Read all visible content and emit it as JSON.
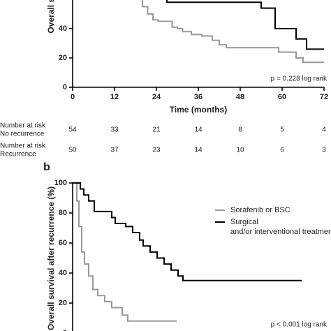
{
  "chart_data": [
    {
      "type": "line",
      "step": true,
      "x_label": "Time (months)",
      "y_label": "Overall survival (%)",
      "xlim": [
        0,
        72
      ],
      "xticks": [
        0,
        12,
        24,
        36,
        48,
        60,
        72
      ],
      "ylim": [
        0,
        100
      ],
      "yticks": [
        0,
        20,
        40
      ],
      "annotation": "p = 0.228 log rank",
      "series": [
        {
          "name": "No recurrence",
          "color": "#000000",
          "x": [
            0,
            8,
            14,
            20,
            25,
            27,
            54,
            58,
            64,
            67,
            72
          ],
          "values": [
            100,
            94,
            86,
            76,
            66,
            58,
            54,
            40,
            33,
            26,
            26
          ]
        },
        {
          "name": "Recurrence",
          "color": "#999999",
          "x": [
            0,
            4,
            8,
            12,
            16,
            19,
            20,
            21.5,
            23,
            24.5,
            28.5,
            30,
            31.5,
            34,
            37,
            40,
            42,
            44,
            59,
            64,
            66,
            72
          ],
          "values": [
            100,
            94,
            86,
            78,
            68,
            60,
            55,
            50,
            46,
            45,
            41,
            40,
            38,
            36,
            35,
            32,
            29,
            27,
            24,
            20,
            17,
            17
          ]
        }
      ],
      "risk_table": {
        "header": "Number at risk",
        "rows": [
          {
            "name": "No recurrence",
            "values": [
              54,
              33,
              21,
              14,
              8,
              5,
              4
            ]
          },
          {
            "name": "Recurrence",
            "values": [
              50,
              37,
              23,
              14,
              10,
              6,
              3
            ]
          }
        ]
      }
    },
    {
      "type": "line",
      "step": true,
      "panel_label": "b",
      "y_label": "Overall survival after recurrence (%)",
      "xlim": [
        0,
        72
      ],
      "ylim": [
        0,
        100
      ],
      "yticks": [
        0,
        20,
        40,
        60,
        80,
        100
      ],
      "annotation": "p < 0.001 log rank",
      "series": [
        {
          "name": "Sorafenib or BSC",
          "color": "#999999",
          "x": [
            0,
            1.2,
            1.8,
            2.6,
            3.4,
            4.6,
            5.8,
            7.2,
            9.2,
            11.2,
            14.2,
            15.8,
            29.8
          ],
          "values": [
            100,
            88,
            71,
            54,
            46,
            38,
            29,
            25,
            21,
            17,
            12,
            8,
            8
          ]
        },
        {
          "name": "Surgical and/or interventional treatment",
          "color": "#000000",
          "x": [
            0,
            2.2,
            3.2,
            4.6,
            6.2,
            11.2,
            12.2,
            15.2,
            17.2,
            19.2,
            20.2,
            22.2,
            24.2,
            26.2,
            28.2,
            30.2,
            31.6,
            65.6
          ],
          "values": [
            100,
            96,
            92,
            88,
            81,
            77,
            73,
            71,
            67,
            62,
            58,
            54,
            50,
            46,
            42,
            38,
            35,
            35
          ]
        }
      ]
    }
  ]
}
